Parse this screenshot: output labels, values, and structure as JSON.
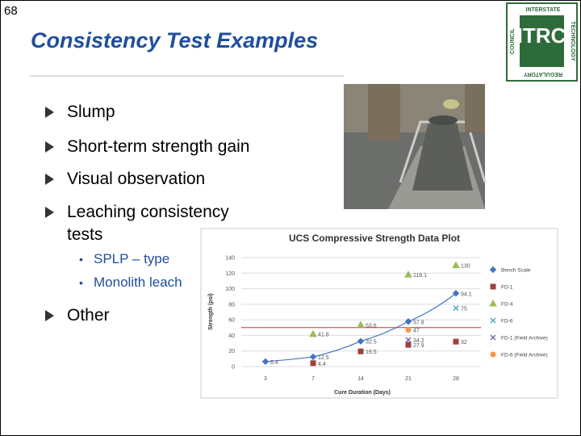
{
  "page_number": "68",
  "title": "Consistency Test Examples",
  "bullets": [
    {
      "text": "Slump"
    },
    {
      "text": "Short-term strength gain"
    },
    {
      "text": "Visual observation"
    },
    {
      "text": "Leaching consistency tests",
      "sub": [
        "SPLP – type",
        "Monolith leach"
      ]
    },
    {
      "text": "Other"
    }
  ],
  "logo": {
    "main": "ITRC",
    "top": "INTERSTATE",
    "right": "TECHNOLOGY",
    "bottom": "REGULATORY",
    "left": "COUNCIL"
  },
  "chart_data": {
    "type": "scatter",
    "title": "UCS Compressive Strength Data Plot",
    "x_label": "Cure Duration (Days)",
    "y_label": "Strength (psi)",
    "categories": [
      "3",
      "7",
      "14",
      "21",
      "28"
    ],
    "ylim": [
      0,
      140
    ],
    "yticks": [
      0,
      20,
      40,
      60,
      80,
      100,
      120,
      140
    ],
    "grid": true,
    "reference_line": 50,
    "reference_color": "#c0392b",
    "legend": "right",
    "series": [
      {
        "name": "Bench Scale",
        "color": "#4472c4",
        "marker": "diamond",
        "trendline": true,
        "values": [
          6.4,
          12.5,
          32.5,
          57.8,
          94.1
        ]
      },
      {
        "name": "FD-1",
        "color": "#a0403c",
        "marker": "square",
        "values": [
          null,
          4.4,
          19.5,
          27.9,
          32
        ]
      },
      {
        "name": "FD-4",
        "color": "#9bbb59",
        "marker": "triangle",
        "values": [
          null,
          41.8,
          53.6,
          118.1,
          130
        ]
      },
      {
        "name": "FD-6",
        "color": "#4bacc6",
        "marker": "x",
        "values": [
          null,
          null,
          null,
          null,
          75
        ]
      },
      {
        "name": "FD-1 (Field Archive)",
        "color": "#8064a2",
        "marker": "x",
        "values": [
          null,
          null,
          null,
          34.2,
          null
        ]
      },
      {
        "name": "FD-6 (Field Archive)",
        "color": "#f79646",
        "marker": "circle",
        "values": [
          null,
          null,
          null,
          47,
          null
        ]
      }
    ]
  }
}
